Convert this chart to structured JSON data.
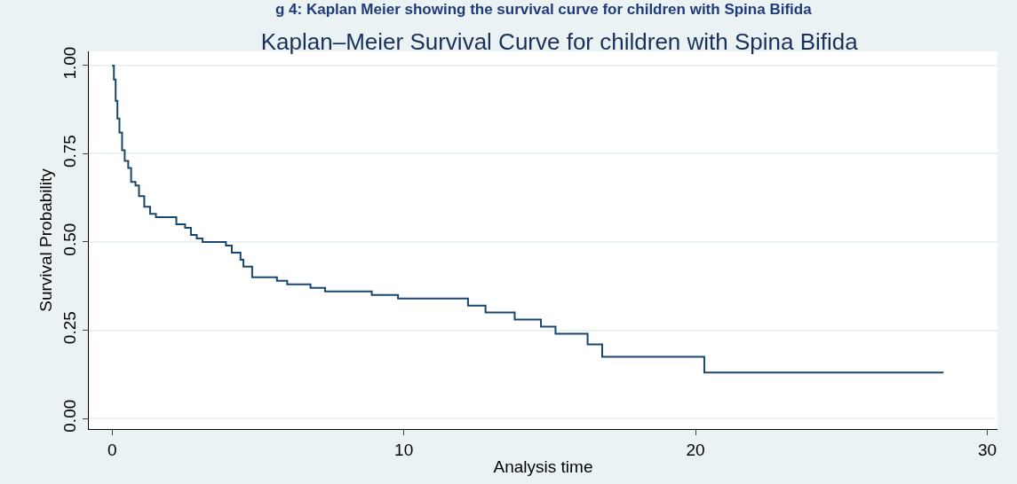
{
  "chart_data": {
    "type": "step",
    "title": "Kaplan–Meier Survival Curve for children with Spina Bifida",
    "annotations": [
      "g 4: Kaplan Meier showing the survival curve for children with Spina Bifida"
    ],
    "xlabel": "Analysis time",
    "ylabel": "Survival Probability",
    "x": [
      0,
      0.06,
      0.12,
      0.18,
      0.25,
      0.34,
      0.43,
      0.55,
      0.65,
      0.8,
      0.92,
      1.1,
      1.3,
      1.5,
      2.2,
      2.5,
      2.7,
      2.9,
      3.1,
      3.9,
      4.1,
      4.4,
      4.5,
      4.8,
      5.65,
      6.0,
      6.8,
      7.3,
      8.9,
      9.8,
      12.2,
      12.8,
      13.8,
      14.7,
      15.2,
      16.3,
      16.8,
      20.3,
      28.5
    ],
    "series": [
      {
        "color": "#1a476f",
        "values": [
          1.0,
          0.96,
          0.9,
          0.85,
          0.81,
          0.76,
          0.73,
          0.71,
          0.67,
          0.66,
          0.63,
          0.6,
          0.58,
          0.57,
          0.55,
          0.54,
          0.52,
          0.51,
          0.5,
          0.49,
          0.47,
          0.45,
          0.43,
          0.4,
          0.39,
          0.38,
          0.37,
          0.36,
          0.35,
          0.34,
          0.32,
          0.3,
          0.28,
          0.26,
          0.24,
          0.21,
          0.175,
          0.13,
          0.13
        ]
      }
    ],
    "xlim": [
      -0.8,
      30.35
    ],
    "xticks": [
      0,
      10,
      20,
      30
    ],
    "ylim": [
      -0.03,
      1.04
    ],
    "yticks": [
      {
        "value": 0,
        "label": "0.00"
      },
      {
        "value": 0.25,
        "label": "0.25"
      },
      {
        "value": 0.5,
        "label": "0.50"
      },
      {
        "value": 0.75,
        "label": "0.75"
      },
      {
        "value": 1,
        "label": "1.00"
      }
    ],
    "grid": "y",
    "line_style": "solid",
    "marker": "none"
  }
}
